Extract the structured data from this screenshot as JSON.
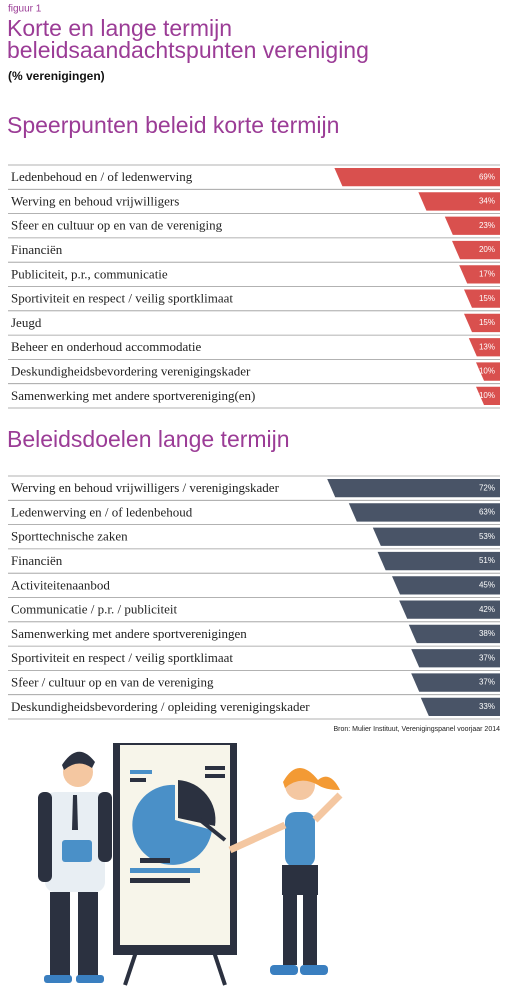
{
  "header": {
    "figure_label": "figuur 1",
    "title_line1": "Korte en lange termijn",
    "title_line2": "beleidsaandachtspunten vereniging",
    "subtitle": "(% verenigingen)"
  },
  "chart_data": [
    {
      "type": "bar",
      "title": "Speerpunten beleid korte termijn",
      "color": "#d9504e",
      "categories": [
        "Ledenbehoud en / of ledenwerving",
        "Werving en behoud vrijwilligers",
        "Sfeer en cultuur op en van de vereniging",
        "Financiën",
        "Publiciteit, p.r., communicatie",
        "Sportiviteit en respect / veilig sportklimaat",
        "Jeugd",
        "Beheer en onderhoud accommodatie",
        "Deskundigheidsbevordering verenigingskader",
        "Samenwerking met andere sportvereniging(en)"
      ],
      "values": [
        69,
        34,
        23,
        20,
        17,
        15,
        15,
        13,
        10,
        10
      ],
      "value_labels": [
        "69%",
        "34%",
        "23%",
        "20%",
        "17%",
        "15%",
        "15%",
        "13%",
        "10%",
        "10%"
      ]
    },
    {
      "type": "bar",
      "title": "Beleidsdoelen lange termijn",
      "color": "#495467",
      "categories": [
        "Werving en behoud vrijwilligers / verenigingskader",
        "Ledenwerving en / of ledenbehoud",
        "Sporttechnische zaken",
        "Financiën",
        "Activiteitenaanbod",
        "Communicatie / p.r. / publiciteit",
        "Samenwerking met andere sportverenigingen",
        "Sportiviteit en respect / veilig sportklimaat",
        "Sfeer / cultuur op en van de vereniging",
        "Deskundigheidsbevordering / opleiding verenigingskader"
      ],
      "values": [
        72,
        63,
        53,
        51,
        45,
        42,
        38,
        37,
        37,
        33
      ],
      "value_labels": [
        "72%",
        "63%",
        "53%",
        "51%",
        "45%",
        "42%",
        "38%",
        "37%",
        "37%",
        "33%"
      ]
    }
  ],
  "source": "Bron: Mulier Instituut, Verenigingspanel voorjaar 2014"
}
